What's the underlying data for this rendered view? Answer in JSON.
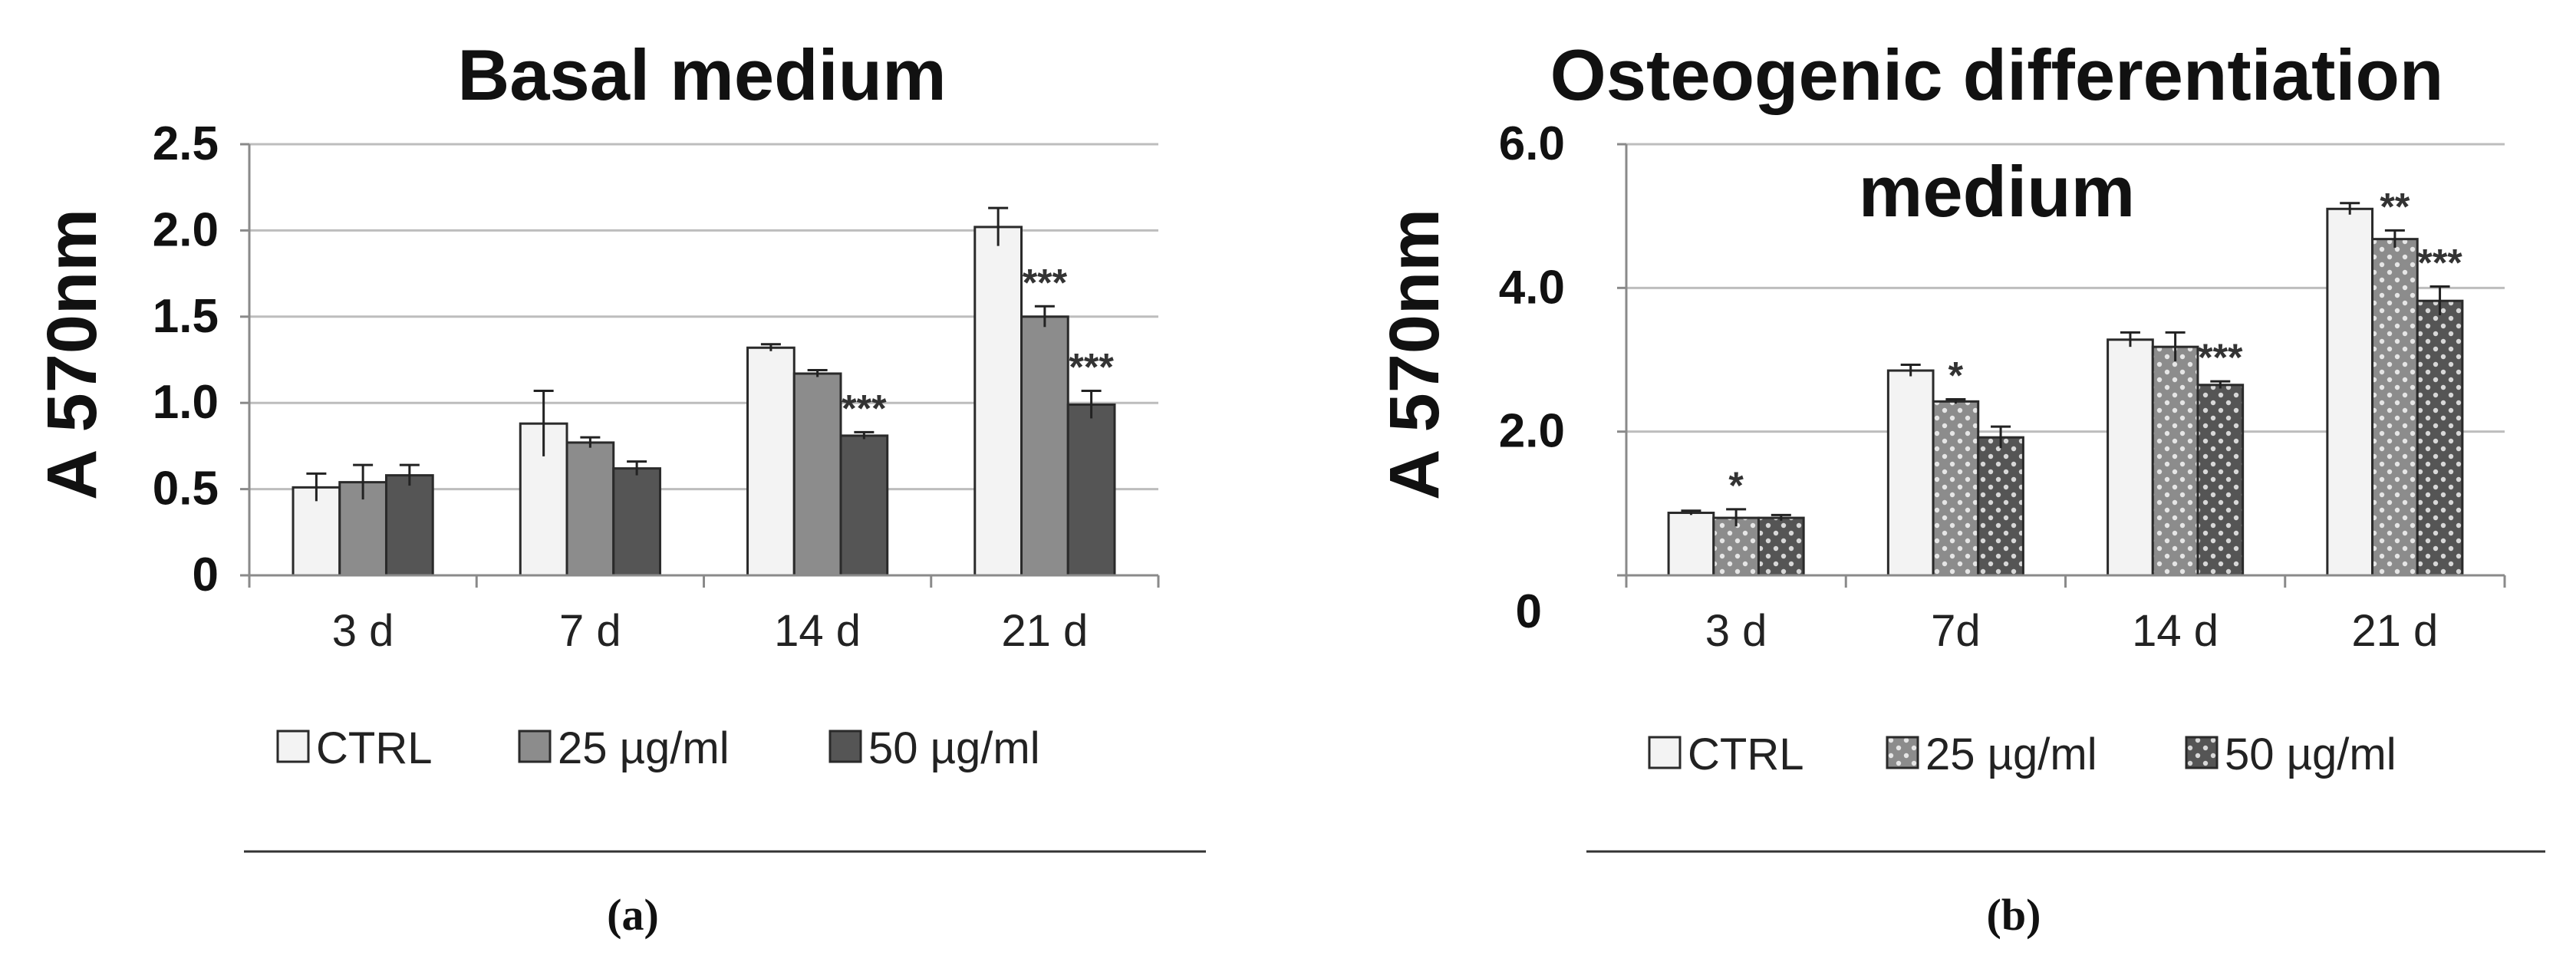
{
  "chart_data": [
    {
      "type": "bar",
      "title": "Basal medium",
      "ylabel": "A 570nm",
      "xlabel": "",
      "ylim": [
        0,
        2.5
      ],
      "y_ticks": [
        "0",
        "0.5",
        "1.0",
        "1.5",
        "2.0",
        "2.5"
      ],
      "y_tick_values": [
        0,
        0.5,
        1.0,
        1.5,
        2.0,
        2.5
      ],
      "categories": [
        "3 d",
        "7 d",
        "14 d",
        "21 d"
      ],
      "grid": true,
      "legend_position": "bottom",
      "caption": "(a)",
      "series": [
        {
          "name": "CTRL",
          "values": [
            0.51,
            0.88,
            1.32,
            2.02
          ],
          "errors": [
            0.08,
            0.19,
            0.02,
            0.11
          ],
          "stars": [
            "",
            "",
            "",
            ""
          ],
          "color": "#f3f3f3",
          "pattern": "none"
        },
        {
          "name": "25 µg/ml",
          "values": [
            0.54,
            0.77,
            1.17,
            1.5
          ],
          "errors": [
            0.1,
            0.03,
            0.02,
            0.06
          ],
          "stars": [
            "",
            "",
            "",
            "***"
          ],
          "color": "#8c8c8c",
          "pattern": "none"
        },
        {
          "name": "50 µg/ml",
          "values": [
            0.58,
            0.62,
            0.81,
            0.99
          ],
          "errors": [
            0.06,
            0.04,
            0.02,
            0.08
          ],
          "stars": [
            "",
            "",
            "***",
            "***"
          ],
          "color": "#555555",
          "pattern": "none"
        }
      ]
    },
    {
      "type": "bar",
      "title_lines": [
        "Osteogenic differentiation",
        "medium"
      ],
      "ylabel": "A 570nm",
      "xlabel": "",
      "ylim": [
        0,
        6.0
      ],
      "y_ticks": [
        "2.0",
        "4.0",
        "6.0"
      ],
      "y_tick_values": [
        2.0,
        4.0,
        6.0
      ],
      "y_zero_label": "0",
      "categories": [
        "3 d",
        "7d",
        "14 d",
        "21 d"
      ],
      "grid": true,
      "legend_position": "bottom",
      "caption": "(b)",
      "series": [
        {
          "name": "CTRL",
          "values": [
            0.87,
            2.85,
            3.28,
            5.1
          ],
          "errors": [
            0.03,
            0.08,
            0.1,
            0.08
          ],
          "stars": [
            "",
            "",
            "",
            ""
          ],
          "color": "#f3f3f3",
          "pattern": "none"
        },
        {
          "name": "25 µg/ml",
          "values": [
            0.8,
            2.42,
            3.18,
            4.68
          ],
          "errors": [
            0.12,
            0.03,
            0.2,
            0.12
          ],
          "stars": [
            "*",
            "*",
            "",
            "**"
          ],
          "color": "#8c8c8c",
          "pattern": "dots"
        },
        {
          "name": "50 µg/ml",
          "values": [
            0.8,
            1.92,
            2.65,
            3.82
          ],
          "errors": [
            0.04,
            0.15,
            0.05,
            0.2
          ],
          "stars": [
            "",
            "",
            "***",
            "***"
          ],
          "color": "#555555",
          "pattern": "dots"
        }
      ]
    }
  ]
}
